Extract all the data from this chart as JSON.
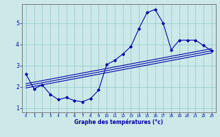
{
  "xlabel": "Graphe des températures (°c)",
  "background_color": "#cce8e8",
  "grid_color": "#99cccc",
  "line_color": "#0000aa",
  "xlim": [
    -0.5,
    23.5
  ],
  "ylim": [
    0.8,
    5.9
  ],
  "xticks": [
    0,
    1,
    2,
    3,
    4,
    5,
    6,
    7,
    8,
    9,
    10,
    11,
    12,
    13,
    14,
    15,
    16,
    17,
    18,
    19,
    20,
    21,
    22,
    23
  ],
  "yticks": [
    1,
    2,
    3,
    4,
    5
  ],
  "main_x": [
    0,
    1,
    2,
    3,
    4,
    5,
    6,
    7,
    8,
    9,
    10,
    11,
    12,
    13,
    14,
    15,
    16,
    17,
    18,
    19,
    20,
    21,
    22,
    23
  ],
  "main_y": [
    2.6,
    1.9,
    2.1,
    1.65,
    1.4,
    1.5,
    1.35,
    1.3,
    1.45,
    1.85,
    3.05,
    3.25,
    3.55,
    3.9,
    4.75,
    5.5,
    5.65,
    5.0,
    3.75,
    4.2,
    4.2,
    4.2,
    3.95,
    3.7
  ],
  "reg_line1_x": [
    0,
    23
  ],
  "reg_line1_y": [
    1.95,
    3.6
  ],
  "reg_line2_x": [
    0,
    23
  ],
  "reg_line2_y": [
    2.05,
    3.7
  ],
  "reg_line3_x": [
    0,
    23
  ],
  "reg_line3_y": [
    2.15,
    3.8
  ]
}
